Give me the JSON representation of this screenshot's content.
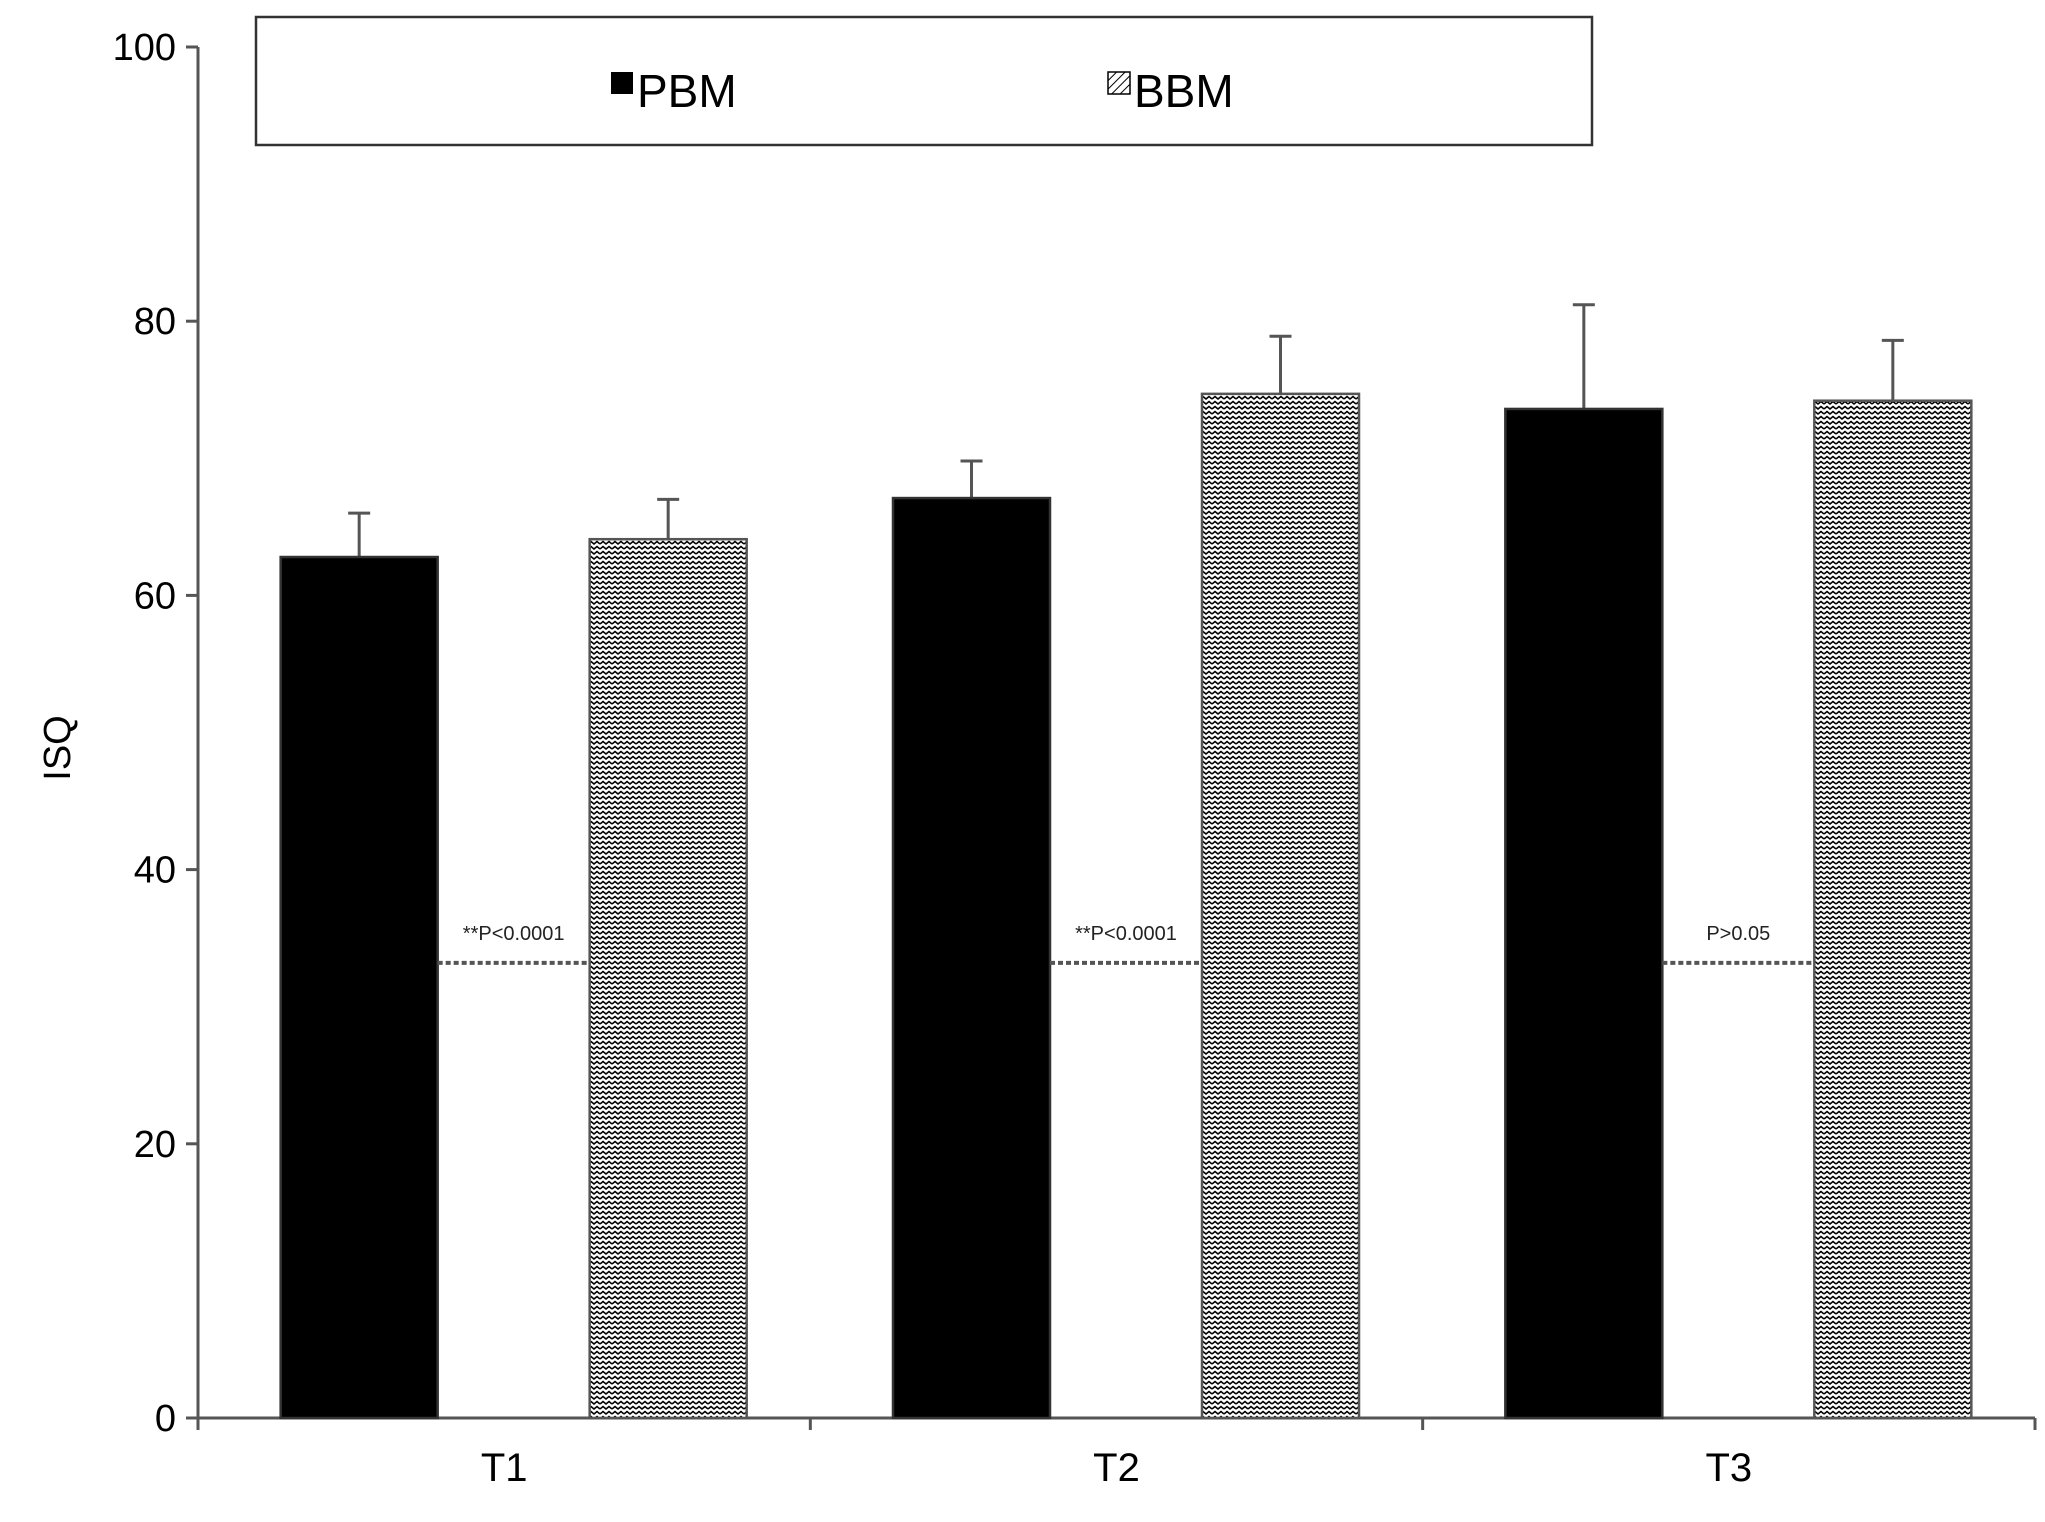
{
  "chart_data": {
    "type": "bar",
    "title": "",
    "xlabel": "",
    "ylabel": "ISQ",
    "ylim": [
      0,
      100
    ],
    "yticks": [
      0,
      20,
      40,
      60,
      80,
      100
    ],
    "categories": [
      "T1",
      "T2",
      "T3"
    ],
    "series": [
      {
        "name": "PBM",
        "values": [
          62.8,
          67.1,
          73.6
        ],
        "errors": [
          3.2,
          2.7,
          7.6
        ],
        "color": "#000000",
        "fill": "solid"
      },
      {
        "name": "BBM",
        "values": [
          64.1,
          74.7,
          74.2
        ],
        "errors": [
          2.9,
          4.2,
          4.4
        ],
        "color": "#ffffff",
        "fill": "zigzag"
      }
    ],
    "annotations": [
      "**P<0.0001",
      "**P<0.0001",
      "P>0.05"
    ],
    "annotation_level": 33.2,
    "legend_position": "top",
    "grid": false
  }
}
